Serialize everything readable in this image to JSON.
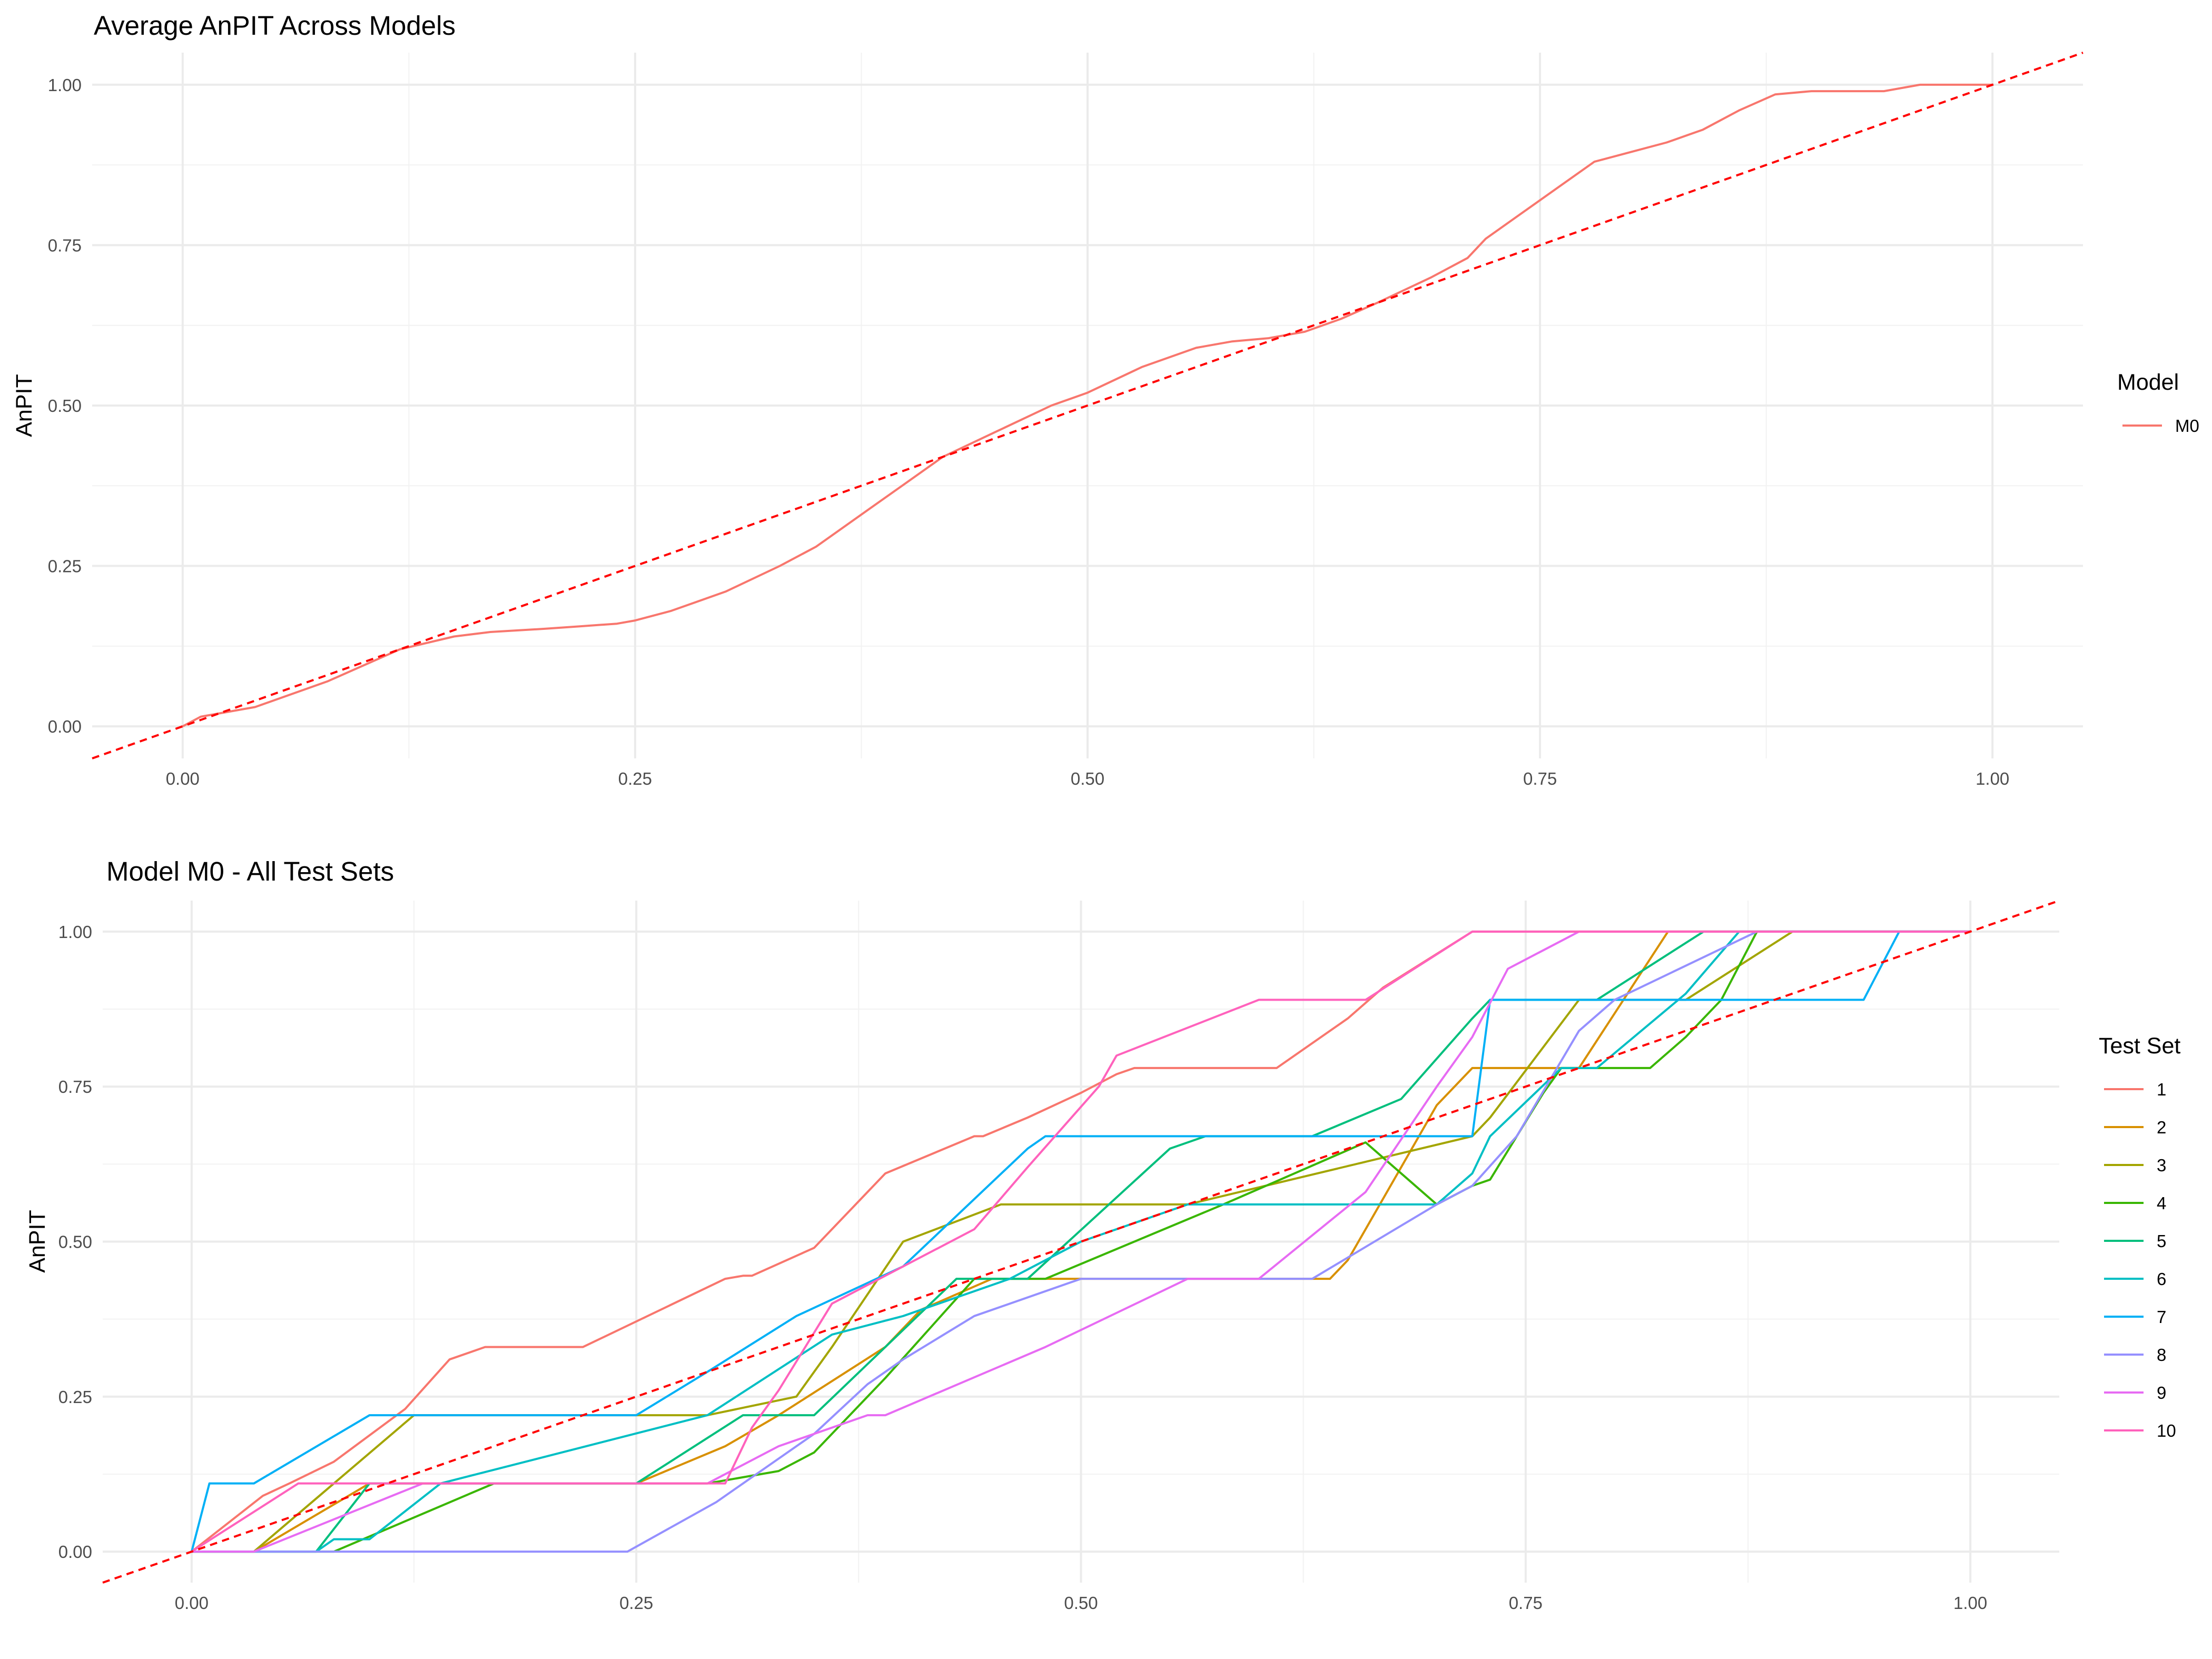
{
  "chart_data": [
    {
      "type": "line",
      "title": "Average AnPIT Across Models",
      "xlabel": "",
      "ylabel": "AnPIT",
      "xlim": [
        -0.05,
        1.05
      ],
      "ylim": [
        -0.05,
        1.05
      ],
      "x_ticks": [
        "0.00",
        "0.25",
        "0.50",
        "0.75",
        "1.00"
      ],
      "y_ticks": [
        "0.00",
        "0.25",
        "0.50",
        "0.75",
        "1.00"
      ],
      "grid": true,
      "reference_line": {
        "from": [
          -0.05,
          -0.05
        ],
        "to": [
          1.05,
          1.05
        ],
        "color": "#ff0000",
        "style": "dashed"
      },
      "legend": {
        "title": "Model",
        "position": "right"
      },
      "series": [
        {
          "name": "M0",
          "color": "#F8766D",
          "x": [
            0,
            0.01,
            0.04,
            0.08,
            0.12,
            0.15,
            0.17,
            0.2,
            0.22,
            0.24,
            0.25,
            0.27,
            0.3,
            0.33,
            0.35,
            0.38,
            0.4,
            0.42,
            0.45,
            0.48,
            0.5,
            0.53,
            0.56,
            0.58,
            0.6,
            0.62,
            0.64,
            0.66,
            0.69,
            0.71,
            0.72,
            0.74,
            0.76,
            0.78,
            0.8,
            0.82,
            0.84,
            0.86,
            0.88,
            0.9,
            0.92,
            0.94,
            0.96,
            1.0
          ],
          "y": [
            0,
            0.015,
            0.03,
            0.07,
            0.12,
            0.14,
            0.147,
            0.152,
            0.156,
            0.16,
            0.165,
            0.18,
            0.21,
            0.25,
            0.28,
            0.34,
            0.38,
            0.42,
            0.46,
            0.5,
            0.52,
            0.56,
            0.59,
            0.6,
            0.605,
            0.615,
            0.635,
            0.66,
            0.7,
            0.73,
            0.76,
            0.8,
            0.84,
            0.88,
            0.895,
            0.91,
            0.93,
            0.96,
            0.985,
            0.99,
            0.99,
            0.99,
            1.0,
            1.0
          ]
        }
      ]
    },
    {
      "type": "line",
      "title": "Model M0 - All Test Sets",
      "xlabel": "",
      "ylabel": "AnPIT",
      "xlim": [
        -0.05,
        1.05
      ],
      "ylim": [
        -0.05,
        1.05
      ],
      "x_ticks": [
        "0.00",
        "0.25",
        "0.50",
        "0.75",
        "1.00"
      ],
      "y_ticks": [
        "0.00",
        "0.25",
        "0.50",
        "0.75",
        "1.00"
      ],
      "grid": true,
      "reference_line": {
        "from": [
          -0.05,
          -0.05
        ],
        "to": [
          1.05,
          1.05
        ],
        "color": "#ff0000",
        "style": "dashed"
      },
      "legend": {
        "title": "Test Set",
        "position": "right"
      },
      "series": [
        {
          "name": "1",
          "color": "#F8766D",
          "x": [
            0,
            0.04,
            0.055,
            0.08,
            0.12,
            0.145,
            0.165,
            0.22,
            0.3,
            0.31,
            0.315,
            0.35,
            0.39,
            0.44,
            0.445,
            0.47,
            0.5,
            0.52,
            0.53,
            0.56,
            0.61,
            0.65,
            0.67,
            0.72,
            1.0
          ],
          "y": [
            0,
            0.09,
            0.11,
            0.145,
            0.23,
            0.31,
            0.33,
            0.33,
            0.44,
            0.445,
            0.445,
            0.49,
            0.61,
            0.67,
            0.67,
            0.7,
            0.74,
            0.77,
            0.78,
            0.78,
            0.78,
            0.86,
            0.91,
            1.0,
            1.0
          ]
        },
        {
          "name": "2",
          "color": "#D89000",
          "x": [
            0,
            0.035,
            0.1,
            0.25,
            0.3,
            0.33,
            0.39,
            0.41,
            0.45,
            0.48,
            0.62,
            0.64,
            0.65,
            0.66,
            0.7,
            0.72,
            0.78,
            0.83,
            1.0
          ],
          "y": [
            0,
            0,
            0.11,
            0.11,
            0.17,
            0.22,
            0.33,
            0.39,
            0.44,
            0.44,
            0.44,
            0.44,
            0.47,
            0.52,
            0.72,
            0.78,
            0.78,
            1.0,
            1.0
          ]
        },
        {
          "name": "3",
          "color": "#A3A500",
          "x": [
            0,
            0.035,
            0.125,
            0.29,
            0.34,
            0.36,
            0.4,
            0.455,
            0.56,
            0.72,
            0.73,
            0.78,
            0.82,
            0.84,
            0.9,
            1.0
          ],
          "y": [
            0,
            0,
            0.22,
            0.22,
            0.25,
            0.33,
            0.5,
            0.56,
            0.56,
            0.67,
            0.7,
            0.89,
            0.89,
            0.89,
            1.0,
            1.0
          ]
        },
        {
          "name": "4",
          "color": "#39B600",
          "x": [
            0,
            0.08,
            0.17,
            0.29,
            0.31,
            0.33,
            0.35,
            0.39,
            0.44,
            0.48,
            0.58,
            0.66,
            0.7,
            0.72,
            0.73,
            0.76,
            0.77,
            0.82,
            0.84,
            0.86,
            0.88,
            1.0
          ],
          "y": [
            0,
            0,
            0.11,
            0.11,
            0.12,
            0.13,
            0.16,
            0.28,
            0.44,
            0.44,
            0.56,
            0.66,
            0.56,
            0.59,
            0.6,
            0.74,
            0.78,
            0.78,
            0.83,
            0.89,
            1.0,
            1.0
          ]
        },
        {
          "name": "5",
          "color": "#00BF7D",
          "x": [
            0,
            0.07,
            0.1,
            0.25,
            0.31,
            0.35,
            0.43,
            0.47,
            0.55,
            0.57,
            0.63,
            0.68,
            0.72,
            0.73,
            0.76,
            0.79,
            0.85,
            1.0
          ],
          "y": [
            0,
            0,
            0.11,
            0.11,
            0.22,
            0.22,
            0.44,
            0.44,
            0.65,
            0.67,
            0.67,
            0.73,
            0.86,
            0.89,
            0.89,
            0.89,
            1.0,
            1.0
          ]
        },
        {
          "name": "6",
          "color": "#00BFC4",
          "x": [
            0,
            0.07,
            0.08,
            0.1,
            0.14,
            0.29,
            0.36,
            0.4,
            0.46,
            0.5,
            0.56,
            0.7,
            0.72,
            0.73,
            0.77,
            0.79,
            0.84,
            0.87,
            1.0
          ],
          "y": [
            0,
            0,
            0.02,
            0.02,
            0.11,
            0.22,
            0.35,
            0.38,
            0.44,
            0.5,
            0.56,
            0.56,
            0.61,
            0.67,
            0.78,
            0.78,
            0.9,
            1.0,
            1.0
          ]
        },
        {
          "name": "7",
          "color": "#00B0F6",
          "x": [
            0,
            0.01,
            0.035,
            0.1,
            0.15,
            0.23,
            0.25,
            0.29,
            0.34,
            0.4,
            0.47,
            0.48,
            0.69,
            0.72,
            0.73,
            0.92,
            0.94,
            0.96,
            1.0
          ],
          "y": [
            0,
            0.11,
            0.11,
            0.22,
            0.22,
            0.22,
            0.22,
            0.29,
            0.38,
            0.46,
            0.65,
            0.67,
            0.67,
            0.67,
            0.89,
            0.89,
            0.89,
            1.0,
            1.0
          ]
        },
        {
          "name": "8",
          "color": "#9590FF",
          "x": [
            0,
            0.03,
            0.245,
            0.295,
            0.32,
            0.35,
            0.38,
            0.4,
            0.44,
            0.5,
            0.63,
            0.7,
            0.72,
            0.745,
            0.78,
            0.8,
            0.88,
            1.0
          ],
          "y": [
            0,
            0,
            0,
            0.08,
            0.13,
            0.19,
            0.27,
            0.31,
            0.38,
            0.44,
            0.44,
            0.56,
            0.59,
            0.67,
            0.84,
            0.89,
            1.0,
            1.0
          ]
        },
        {
          "name": "9",
          "color": "#E76BF3",
          "x": [
            0,
            0.035,
            0.13,
            0.29,
            0.33,
            0.38,
            0.39,
            0.48,
            0.56,
            0.6,
            0.63,
            0.66,
            0.7,
            0.72,
            0.74,
            0.78,
            1.0
          ],
          "y": [
            0,
            0,
            0.11,
            0.11,
            0.17,
            0.22,
            0.22,
            0.33,
            0.44,
            0.44,
            0.51,
            0.58,
            0.75,
            0.83,
            0.94,
            1.0,
            1.0
          ]
        },
        {
          "name": "10",
          "color": "#FF62BC",
          "x": [
            0,
            0.06,
            0.3,
            0.315,
            0.33,
            0.36,
            0.44,
            0.47,
            0.51,
            0.52,
            0.6,
            0.66,
            0.72,
            1.0
          ],
          "y": [
            0,
            0.11,
            0.11,
            0.2,
            0.26,
            0.4,
            0.52,
            0.62,
            0.75,
            0.8,
            0.89,
            0.89,
            1.0,
            1.0
          ]
        }
      ]
    }
  ]
}
